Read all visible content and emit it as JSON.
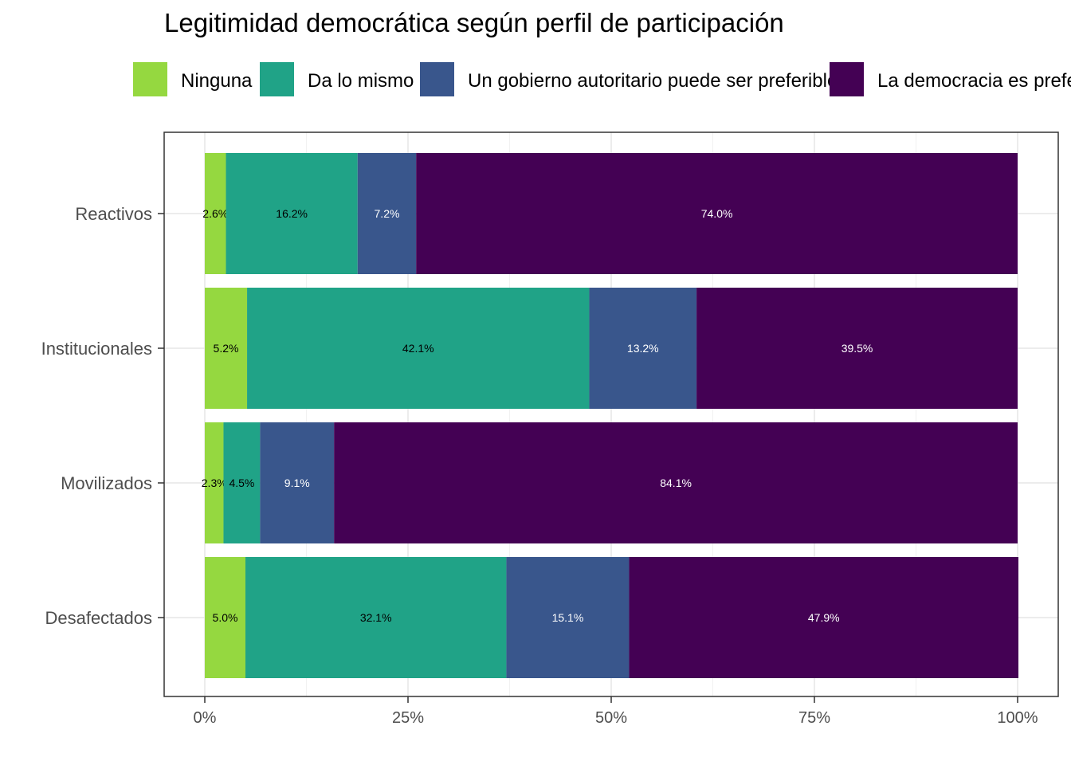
{
  "chart_data": {
    "type": "bar",
    "orientation": "horizontal",
    "stacked": true,
    "title": "Legitimidad democrática según perfil de participación",
    "xlabel": "",
    "ylabel": "",
    "xlim": [
      0,
      100
    ],
    "x_ticks": [
      "0%",
      "25%",
      "50%",
      "75%",
      "100%"
    ],
    "grid": true,
    "legend_position": "top",
    "categories": [
      "Reactivos",
      "Institucionales",
      "Movilizados",
      "Desafectados"
    ],
    "series": [
      {
        "name": "Ninguna",
        "color": "#95d840",
        "label_color": "#000000",
        "values": [
          2.6,
          5.2,
          2.3,
          5.0
        ],
        "labels": [
          "2.6%",
          "5.2%",
          "2.3%",
          "5.0%"
        ]
      },
      {
        "name": "Da lo mismo",
        "color": "#20a387",
        "label_color": "#000000",
        "values": [
          16.2,
          42.1,
          4.5,
          32.1
        ],
        "labels": [
          "16.2%",
          "42.1%",
          "4.5%",
          "32.1%"
        ]
      },
      {
        "name": "Un gobierno autoritario puede ser preferible",
        "color": "#39568c",
        "label_color": "#ffffff",
        "values": [
          7.2,
          13.2,
          9.1,
          15.1
        ],
        "labels": [
          "7.2%",
          "13.2%",
          "9.1%",
          "15.1%"
        ]
      },
      {
        "name": "La democracia es preferible",
        "color": "#440154",
        "label_color": "#ffffff",
        "values": [
          74.0,
          39.5,
          84.1,
          47.9
        ],
        "labels": [
          "74.0%",
          "39.5%",
          "84.1%",
          "47.9%"
        ]
      }
    ]
  }
}
